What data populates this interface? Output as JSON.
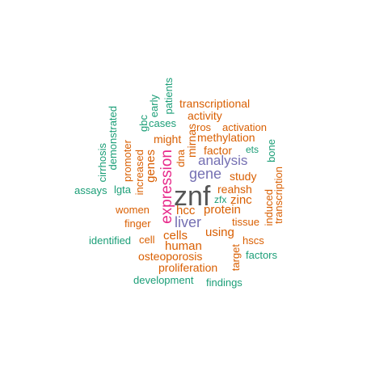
{
  "colors": {
    "green": "#1b9e77",
    "orange": "#d95f02",
    "purple": "#7570b3",
    "magenta": "#e7298a",
    "dark": "#555555"
  },
  "words": [
    {
      "text": "znf",
      "color": "dark"
    },
    {
      "text": "expression",
      "color": "magenta"
    },
    {
      "text": "liver",
      "color": "purple"
    },
    {
      "text": "gene",
      "color": "purple"
    },
    {
      "text": "analysis",
      "color": "purple"
    },
    {
      "text": "hcc",
      "color": "orange"
    },
    {
      "text": "protein",
      "color": "orange"
    },
    {
      "text": "cells",
      "color": "orange"
    },
    {
      "text": "human",
      "color": "orange"
    },
    {
      "text": "using",
      "color": "orange"
    },
    {
      "text": "mirnas",
      "color": "orange"
    },
    {
      "text": "genes",
      "color": "orange"
    },
    {
      "text": "transcriptional",
      "color": "orange"
    },
    {
      "text": "activity",
      "color": "orange"
    },
    {
      "text": "ros",
      "color": "orange"
    },
    {
      "text": "activation",
      "color": "orange"
    },
    {
      "text": "methylation",
      "color": "orange"
    },
    {
      "text": "might",
      "color": "orange"
    },
    {
      "text": "factor",
      "color": "orange"
    },
    {
      "text": "ets",
      "color": "green"
    },
    {
      "text": "dna",
      "color": "orange"
    },
    {
      "text": "study",
      "color": "orange"
    },
    {
      "text": "reahsh",
      "color": "orange"
    },
    {
      "text": "zinc",
      "color": "orange"
    },
    {
      "text": "zfx",
      "color": "green"
    },
    {
      "text": "tissue",
      "color": "orange"
    },
    {
      "text": "hscs",
      "color": "orange"
    },
    {
      "text": "factors",
      "color": "green"
    },
    {
      "text": "target",
      "color": "orange"
    },
    {
      "text": "induced",
      "color": "orange"
    },
    {
      "text": "transcription",
      "color": "orange"
    },
    {
      "text": "bone",
      "color": "green"
    },
    {
      "text": "increased",
      "color": "orange"
    },
    {
      "text": "promoter",
      "color": "orange"
    },
    {
      "text": "women",
      "color": "orange"
    },
    {
      "text": "finger",
      "color": "orange"
    },
    {
      "text": "cell",
      "color": "orange"
    },
    {
      "text": "identified",
      "color": "green"
    },
    {
      "text": "osteoporosis",
      "color": "orange"
    },
    {
      "text": "proliferation",
      "color": "orange"
    },
    {
      "text": "development",
      "color": "green"
    },
    {
      "text": "findings",
      "color": "green"
    },
    {
      "text": "assays",
      "color": "green"
    },
    {
      "text": "lgta",
      "color": "green"
    },
    {
      "text": "cirrhosis",
      "color": "green"
    },
    {
      "text": "demonstrated",
      "color": "green"
    },
    {
      "text": "gbc",
      "color": "green"
    },
    {
      "text": "early",
      "color": "green"
    },
    {
      "text": "patients",
      "color": "green"
    },
    {
      "text": "cases",
      "color": "green"
    }
  ]
}
